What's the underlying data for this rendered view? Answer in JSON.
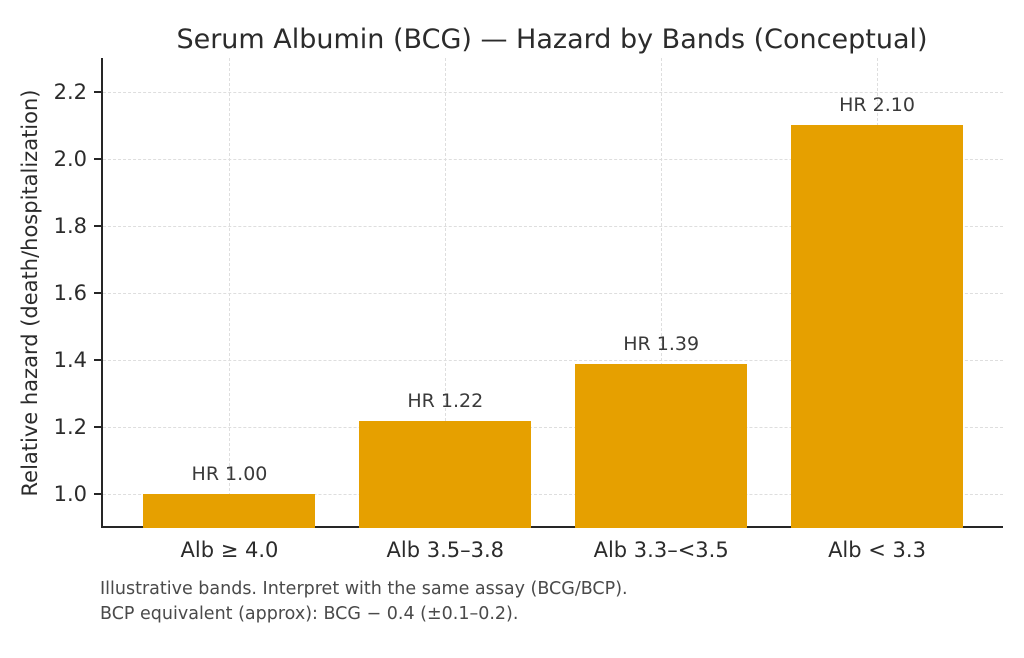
{
  "chart_data": {
    "type": "bar",
    "title": "Serum Albumin (BCG) — Hazard by Bands (Conceptual)",
    "xlabel": "",
    "ylabel": "Relative hazard (death/hospitalization)",
    "categories": [
      "Alb ≥ 4.0",
      "Alb 3.5–3.8",
      "Alb 3.3–<3.5",
      "Alb < 3.3"
    ],
    "values": [
      1.0,
      1.22,
      1.39,
      2.1
    ],
    "bar_labels": [
      "HR 1.00",
      "HR 1.22",
      "HR 1.39",
      "HR 2.10"
    ],
    "ylim": [
      0.9,
      2.3
    ],
    "ytick_values": [
      1.0,
      1.2,
      1.4,
      1.6,
      1.8,
      2.0,
      2.2
    ],
    "ytick_labels": [
      "1.0",
      "1.2",
      "1.4",
      "1.6",
      "1.8",
      "2.0",
      "2.2"
    ],
    "bar_color": "#E6A000",
    "grid": "dashed, horizontal at y-ticks and vertical at bar centers",
    "legend": "none"
  },
  "footnotes": {
    "line1": "Illustrative bands. Interpret with the same assay (BCG/BCP).",
    "line2": "BCP equivalent (approx): BCG − 0.4 (±0.1–0.2)."
  }
}
